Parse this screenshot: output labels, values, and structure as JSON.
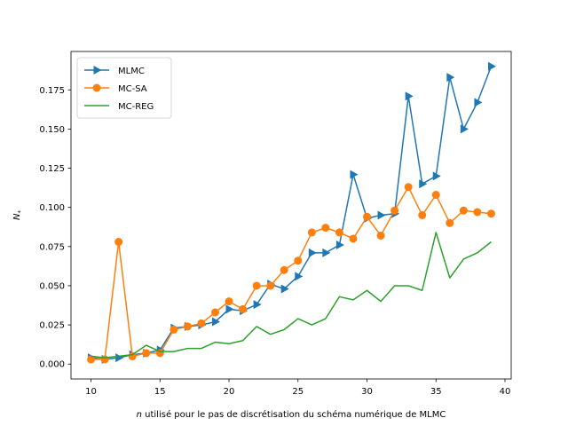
{
  "chart_data": {
    "type": "line",
    "title": "",
    "xlabel": "n utilisé pour le pas de discrétisation du schéma numérique de MLMC",
    "xlabel_italic_part": "n",
    "xlabel_rest": " utilisé pour le pas de discrétisation du schéma numérique de MLMC",
    "ylabel": "N*",
    "xlim": [
      8.55,
      40.45
    ],
    "ylim": [
      -0.0095,
      0.1995
    ],
    "xticks": [
      10,
      15,
      20,
      25,
      30,
      35,
      40
    ],
    "yticks": [
      0.0,
      0.025,
      0.05,
      0.075,
      0.1,
      0.125,
      0.15,
      0.175
    ],
    "ytick_labels": [
      "0.000",
      "0.025",
      "0.050",
      "0.075",
      "0.100",
      "0.125",
      "0.150",
      "0.175"
    ],
    "grid": false,
    "legend_position": "top-left",
    "x": [
      10,
      11,
      12,
      13,
      14,
      15,
      16,
      17,
      18,
      19,
      20,
      21,
      22,
      23,
      24,
      25,
      26,
      27,
      28,
      29,
      30,
      31,
      32,
      33,
      34,
      35,
      36,
      37,
      38,
      39
    ],
    "series": [
      {
        "name": "MLMC",
        "color": "#1f77b4",
        "marker": "triangle-right",
        "values": [
          0.004,
          0.003,
          0.004,
          0.006,
          0.007,
          0.009,
          0.023,
          0.024,
          0.025,
          0.027,
          0.035,
          0.034,
          0.038,
          0.051,
          0.048,
          0.056,
          0.071,
          0.071,
          0.076,
          0.121,
          0.093,
          0.095,
          0.096,
          0.171,
          0.115,
          0.12,
          0.183,
          0.15,
          0.167,
          0.19
        ]
      },
      {
        "name": "MC-SA",
        "color": "#ff7f0e",
        "marker": "circle",
        "values": [
          0.003,
          0.003,
          0.078,
          0.005,
          0.007,
          0.007,
          0.022,
          0.024,
          0.026,
          0.033,
          0.04,
          0.035,
          0.05,
          0.05,
          0.06,
          0.066,
          0.084,
          0.087,
          0.084,
          0.08,
          0.094,
          0.082,
          0.098,
          0.113,
          0.095,
          0.108,
          0.09,
          0.098,
          0.097,
          0.096
        ]
      },
      {
        "name": "MC-REG",
        "color": "#2ca02c",
        "marker": "none",
        "values": [
          0.005,
          0.004,
          0.005,
          0.006,
          0.012,
          0.008,
          0.008,
          0.01,
          0.01,
          0.014,
          0.013,
          0.015,
          0.024,
          0.019,
          0.022,
          0.029,
          0.025,
          0.029,
          0.043,
          0.041,
          0.047,
          0.04,
          0.05,
          0.05,
          0.047,
          0.084,
          0.055,
          0.067,
          0.071,
          0.078
        ]
      }
    ]
  }
}
